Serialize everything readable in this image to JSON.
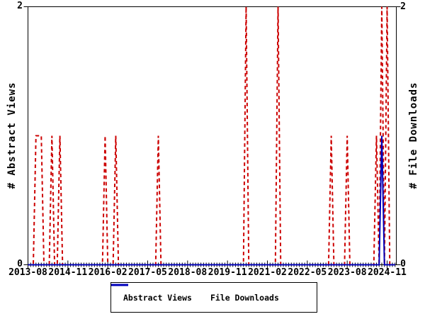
{
  "chart_data": {
    "type": "line",
    "title": "",
    "x_start_month": "2013-08",
    "x_end_month": "2025-02",
    "months_total": 139,
    "x_major_tick_interval_months": 15,
    "x_tick_labels": [
      "2013-08",
      "2014-11",
      "2016-02",
      "2017-05",
      "2018-08",
      "2019-11",
      "2021-02",
      "2022-05",
      "2023-08",
      "2024-11"
    ],
    "ylim": [
      0,
      2
    ],
    "y_ticks": [
      0,
      2
    ],
    "grid": false,
    "legend_position": "bottom",
    "y_left_label": "# Abstract Views",
    "y_right_label": "# File Downloads",
    "series": [
      {
        "name": "Abstract Views",
        "axis": "left",
        "color": "#cc0000",
        "style": "dashed",
        "default_value": 0,
        "nonzero_points": [
          {
            "month": "2013-11",
            "value": 1
          },
          {
            "month": "2013-12",
            "value": 1
          },
          {
            "month": "2014-01",
            "value": 1
          },
          {
            "month": "2014-05",
            "value": 1
          },
          {
            "month": "2014-08",
            "value": 1
          },
          {
            "month": "2016-01",
            "value": 1
          },
          {
            "month": "2016-05",
            "value": 1
          },
          {
            "month": "2017-09",
            "value": 1
          },
          {
            "month": "2020-06",
            "value": 2
          },
          {
            "month": "2021-06",
            "value": 2
          },
          {
            "month": "2023-02",
            "value": 1
          },
          {
            "month": "2023-08",
            "value": 1
          },
          {
            "month": "2024-07",
            "value": 1
          },
          {
            "month": "2024-09",
            "value": 2
          },
          {
            "month": "2024-11",
            "value": 2
          }
        ]
      },
      {
        "name": "File Downloads",
        "axis": "right",
        "color": "#0000bb",
        "style": "solid",
        "default_value": 0,
        "nonzero_points": [
          {
            "month": "2024-09",
            "value": 1
          }
        ]
      }
    ]
  },
  "axis_labels": {
    "left": "# Abstract Views",
    "right": "# File Downloads",
    "left_top": "2",
    "left_bottom": "0",
    "right_top": "2",
    "right_bottom": "0"
  },
  "legend": {
    "items": [
      {
        "label": "Abstract Views",
        "color": "#cc0000",
        "style": "dashed"
      },
      {
        "label": "File Downloads",
        "color": "#0000bb",
        "style": "solid"
      }
    ]
  },
  "colors": {
    "abstract_views": "#cc0000",
    "file_downloads": "#0000bb",
    "axis": "#000000",
    "background": "#ffffff"
  }
}
